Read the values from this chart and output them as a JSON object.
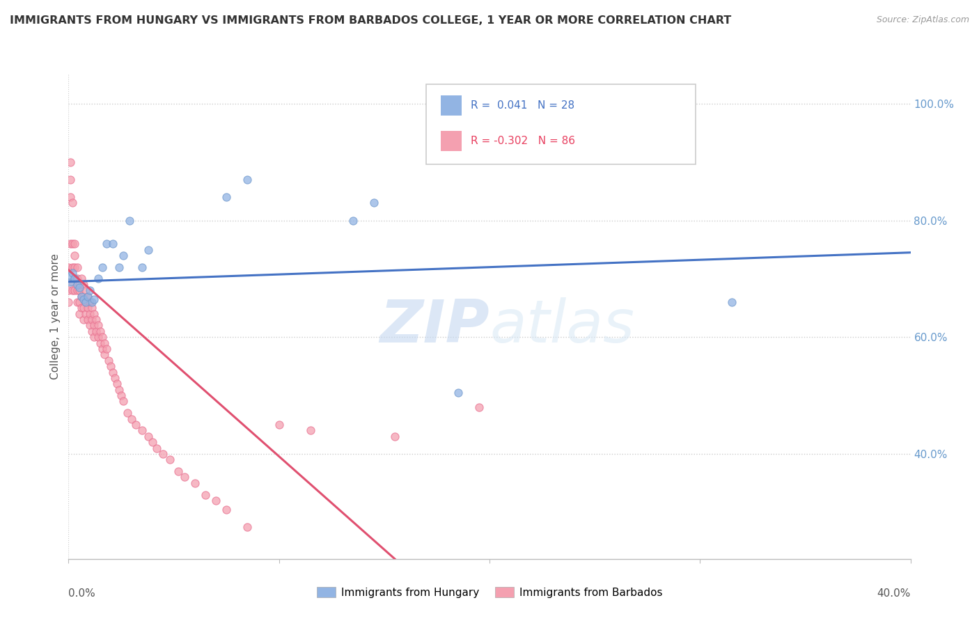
{
  "title": "IMMIGRANTS FROM HUNGARY VS IMMIGRANTS FROM BARBADOS COLLEGE, 1 YEAR OR MORE CORRELATION CHART",
  "source": "Source: ZipAtlas.com",
  "ylabel": "College, 1 year or more",
  "xlim": [
    0.0,
    0.4
  ],
  "ylim": [
    0.22,
    1.05
  ],
  "ytick_labels": [
    "40.0%",
    "60.0%",
    "80.0%",
    "100.0%"
  ],
  "ytick_vals": [
    0.4,
    0.6,
    0.8,
    1.0
  ],
  "legend1_label": "Immigrants from Hungary",
  "legend2_label": "Immigrants from Barbados",
  "R1": 0.041,
  "N1": 28,
  "R2": -0.302,
  "N2": 86,
  "color1": "#92B4E3",
  "color2": "#F4A0B0",
  "color1_edge": "#7099CC",
  "color2_edge": "#E87090",
  "trendline1_color": "#4472C4",
  "trendline2_color": "#E05070",
  "watermark_zip": "ZIP",
  "watermark_atlas": "atlas",
  "trendline1_x": [
    0.0,
    0.4
  ],
  "trendline1_y": [
    0.695,
    0.745
  ],
  "trendline2_x": [
    0.0,
    0.155
  ],
  "trendline2_y": [
    0.715,
    0.22
  ],
  "hungary_x": [
    0.001,
    0.001,
    0.002,
    0.003,
    0.004,
    0.005,
    0.006,
    0.007,
    0.008,
    0.009,
    0.01,
    0.011,
    0.012,
    0.014,
    0.016,
    0.018,
    0.021,
    0.024,
    0.026,
    0.029,
    0.035,
    0.038,
    0.075,
    0.085,
    0.135,
    0.145,
    0.185,
    0.315
  ],
  "hungary_y": [
    0.695,
    0.705,
    0.71,
    0.7,
    0.69,
    0.685,
    0.67,
    0.665,
    0.66,
    0.67,
    0.68,
    0.66,
    0.665,
    0.7,
    0.72,
    0.76,
    0.76,
    0.72,
    0.74,
    0.8,
    0.72,
    0.75,
    0.84,
    0.87,
    0.8,
    0.83,
    0.505,
    0.66
  ],
  "barbados_x": [
    0.0,
    0.0,
    0.0,
    0.001,
    0.001,
    0.001,
    0.001,
    0.002,
    0.002,
    0.002,
    0.002,
    0.002,
    0.003,
    0.003,
    0.003,
    0.003,
    0.003,
    0.004,
    0.004,
    0.004,
    0.004,
    0.005,
    0.005,
    0.005,
    0.005,
    0.006,
    0.006,
    0.006,
    0.007,
    0.007,
    0.007,
    0.007,
    0.008,
    0.008,
    0.008,
    0.009,
    0.009,
    0.009,
    0.01,
    0.01,
    0.01,
    0.011,
    0.011,
    0.011,
    0.012,
    0.012,
    0.012,
    0.013,
    0.013,
    0.014,
    0.014,
    0.015,
    0.015,
    0.016,
    0.016,
    0.017,
    0.017,
    0.018,
    0.019,
    0.02,
    0.021,
    0.022,
    0.023,
    0.024,
    0.025,
    0.026,
    0.028,
    0.03,
    0.032,
    0.035,
    0.038,
    0.04,
    0.042,
    0.045,
    0.048,
    0.052,
    0.055,
    0.06,
    0.065,
    0.07,
    0.075,
    0.085,
    0.1,
    0.115,
    0.155,
    0.195
  ],
  "barbados_y": [
    0.72,
    0.68,
    0.66,
    0.9,
    0.87,
    0.84,
    0.76,
    0.83,
    0.76,
    0.72,
    0.695,
    0.68,
    0.76,
    0.74,
    0.72,
    0.7,
    0.68,
    0.72,
    0.7,
    0.68,
    0.66,
    0.69,
    0.68,
    0.66,
    0.64,
    0.7,
    0.67,
    0.65,
    0.69,
    0.67,
    0.65,
    0.63,
    0.68,
    0.66,
    0.64,
    0.67,
    0.65,
    0.63,
    0.66,
    0.64,
    0.62,
    0.65,
    0.63,
    0.61,
    0.64,
    0.62,
    0.6,
    0.63,
    0.61,
    0.62,
    0.6,
    0.61,
    0.59,
    0.6,
    0.58,
    0.59,
    0.57,
    0.58,
    0.56,
    0.55,
    0.54,
    0.53,
    0.52,
    0.51,
    0.5,
    0.49,
    0.47,
    0.46,
    0.45,
    0.44,
    0.43,
    0.42,
    0.41,
    0.4,
    0.39,
    0.37,
    0.36,
    0.35,
    0.33,
    0.32,
    0.305,
    0.275,
    0.45,
    0.44,
    0.43,
    0.48
  ]
}
